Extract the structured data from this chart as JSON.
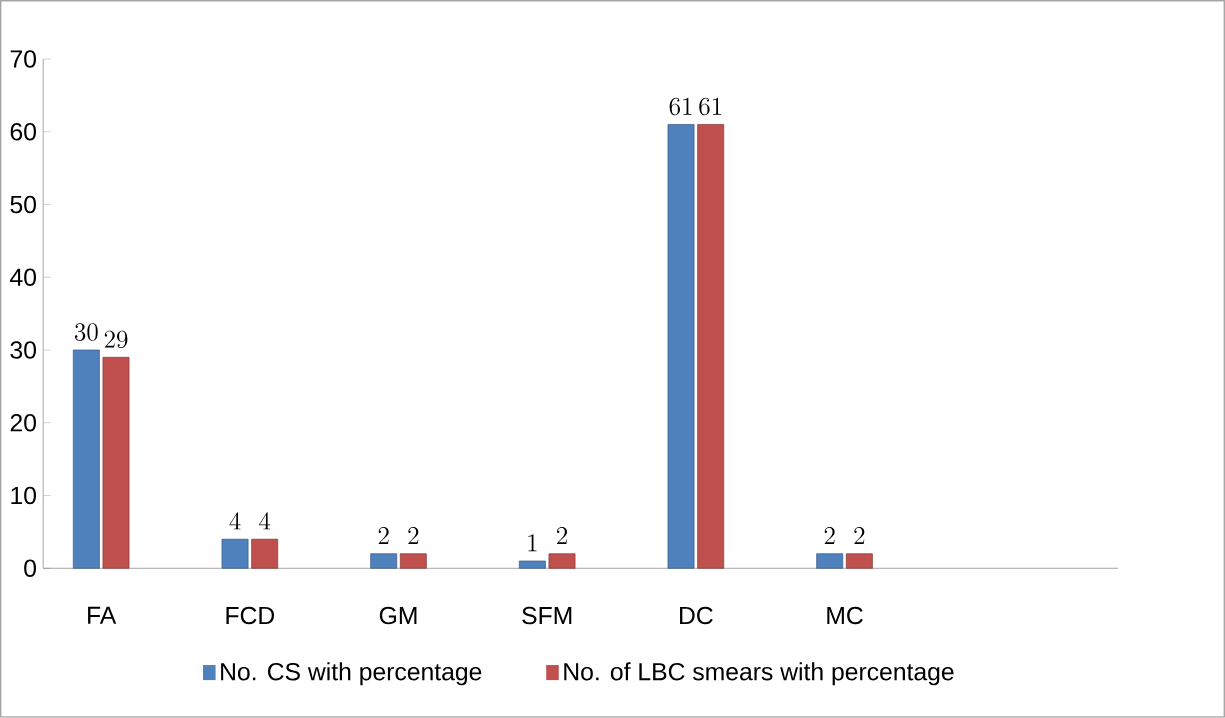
{
  "chart_data": {
    "type": "bar",
    "categories": [
      "FA",
      "FCD",
      "GM",
      "SFM",
      "DC",
      "MC"
    ],
    "series": [
      {
        "name": "No. CS with percentage",
        "color": "#4f81bd",
        "values": [
          30,
          4,
          2,
          1,
          61,
          2
        ]
      },
      {
        "name": "No. of LBC smears with percentage",
        "color": "#c0504d",
        "values": [
          29,
          4,
          2,
          2,
          61,
          2
        ]
      }
    ],
    "ylim": [
      0,
      70
    ],
    "yticks": [
      0,
      10,
      20,
      30,
      40,
      50,
      60,
      70
    ],
    "data_labels": true,
    "legend": "bottom"
  }
}
